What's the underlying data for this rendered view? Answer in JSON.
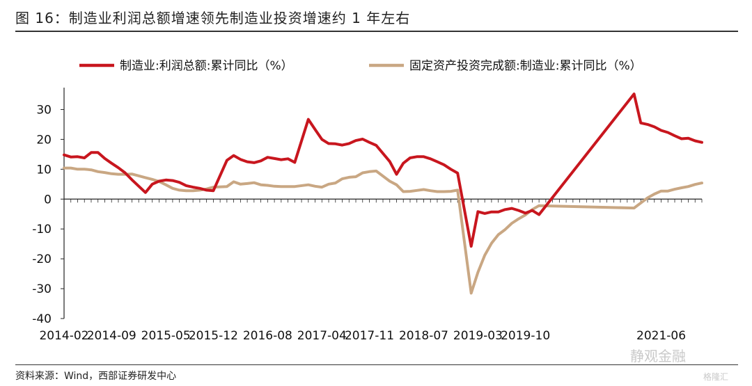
{
  "figure": {
    "title": "图 16：制造业利润总额增速领先制造业投资增速约 1 年左右",
    "source": "资料来源：Wind，西部证券研发中心",
    "watermark": "静观金融",
    "watermark_sub": "格隆汇"
  },
  "colors": {
    "series_profit": "#c8161e",
    "series_investment": "#c9a783",
    "axis": "#222222"
  },
  "chart_data": {
    "type": "line",
    "ylim": [
      -40,
      35
    ],
    "yticks": [
      -40,
      -30,
      -20,
      -10,
      0,
      10,
      20,
      30
    ],
    "x_range": [
      "2014-02",
      "2021-12"
    ],
    "x_tick_labels": [
      "2014-02",
      "2014-09",
      "2015-05",
      "2015-12",
      "2016-08",
      "2017-04",
      "2017-11",
      "2018-07",
      "2019-03",
      "2019-10",
      "2021-06"
    ],
    "legend_position": "top",
    "series": [
      {
        "name": "制造业:利润总额:累计同比（%）",
        "points": [
          [
            "2014-02",
            14.8
          ],
          [
            "2014-03",
            14.1
          ],
          [
            "2014-04",
            14.2
          ],
          [
            "2014-05",
            13.8
          ],
          [
            "2014-06",
            15.6
          ],
          [
            "2014-07",
            15.6
          ],
          [
            "2014-08",
            13.6
          ],
          [
            "2014-09",
            12.0
          ],
          [
            "2014-10",
            10.5
          ],
          [
            "2014-11",
            8.8
          ],
          [
            "2014-12",
            6.5
          ],
          [
            "2015-02",
            2.2
          ],
          [
            "2015-03",
            5.0
          ],
          [
            "2015-04",
            6.0
          ],
          [
            "2015-05",
            6.4
          ],
          [
            "2015-06",
            6.2
          ],
          [
            "2015-07",
            5.6
          ],
          [
            "2015-08",
            4.5
          ],
          [
            "2015-09",
            4.0
          ],
          [
            "2015-10",
            3.6
          ],
          [
            "2015-11",
            3.0
          ],
          [
            "2015-12",
            2.8
          ],
          [
            "2016-02",
            13.0
          ],
          [
            "2016-03",
            14.6
          ],
          [
            "2016-04",
            13.3
          ],
          [
            "2016-05",
            12.5
          ],
          [
            "2016-06",
            12.2
          ],
          [
            "2016-07",
            12.8
          ],
          [
            "2016-08",
            14.0
          ],
          [
            "2016-09",
            13.6
          ],
          [
            "2016-10",
            13.2
          ],
          [
            "2016-11",
            13.5
          ],
          [
            "2016-12",
            12.3
          ],
          [
            "2017-02",
            26.7
          ],
          [
            "2017-03",
            23.3
          ],
          [
            "2017-04",
            20.0
          ],
          [
            "2017-05",
            18.6
          ],
          [
            "2017-06",
            18.5
          ],
          [
            "2017-07",
            18.1
          ],
          [
            "2017-08",
            18.6
          ],
          [
            "2017-09",
            19.6
          ],
          [
            "2017-10",
            20.1
          ],
          [
            "2017-11",
            19.0
          ],
          [
            "2017-12",
            18.0
          ],
          [
            "2018-02",
            12.6
          ],
          [
            "2018-03",
            8.3
          ],
          [
            "2018-04",
            12.0
          ],
          [
            "2018-05",
            13.8
          ],
          [
            "2018-06",
            14.2
          ],
          [
            "2018-07",
            14.2
          ],
          [
            "2018-08",
            13.5
          ],
          [
            "2018-09",
            12.5
          ],
          [
            "2018-10",
            11.5
          ],
          [
            "2018-11",
            10.0
          ],
          [
            "2018-12",
            8.7
          ],
          [
            "2019-02",
            -15.8
          ],
          [
            "2019-03",
            -4.2
          ],
          [
            "2019-04",
            -4.8
          ],
          [
            "2019-05",
            -4.3
          ],
          [
            "2019-06",
            -4.3
          ],
          [
            "2019-07",
            -3.5
          ],
          [
            "2019-08",
            -3.1
          ],
          [
            "2019-09",
            -3.8
          ],
          [
            "2019-10",
            -4.7
          ],
          [
            "2019-11",
            -3.8
          ],
          [
            "2019-12",
            -5.2
          ],
          [
            "2021-02",
            35.2
          ],
          [
            "2021-03",
            25.5
          ],
          [
            "2021-04",
            25.0
          ],
          [
            "2021-05",
            24.2
          ],
          [
            "2021-06",
            23.0
          ],
          [
            "2021-07",
            22.3
          ],
          [
            "2021-08",
            21.2
          ],
          [
            "2021-09",
            20.2
          ],
          [
            "2021-10",
            20.4
          ],
          [
            "2021-11",
            19.5
          ],
          [
            "2021-12",
            19.0
          ]
        ]
      },
      {
        "name": "固定资产投资完成额:制造业:累计同比（%）",
        "points": [
          [
            "2014-02",
            10.4
          ],
          [
            "2014-03",
            10.4
          ],
          [
            "2014-04",
            10.0
          ],
          [
            "2014-05",
            10.0
          ],
          [
            "2014-06",
            9.8
          ],
          [
            "2014-07",
            9.2
          ],
          [
            "2014-08",
            8.9
          ],
          [
            "2014-09",
            8.5
          ],
          [
            "2014-10",
            8.3
          ],
          [
            "2014-11",
            8.3
          ],
          [
            "2014-12",
            8.4
          ],
          [
            "2015-02",
            7.2
          ],
          [
            "2015-03",
            6.6
          ],
          [
            "2015-04",
            5.9
          ],
          [
            "2015-05",
            4.8
          ],
          [
            "2015-06",
            3.6
          ],
          [
            "2015-07",
            3.0
          ],
          [
            "2015-08",
            2.8
          ],
          [
            "2015-09",
            2.8
          ],
          [
            "2015-10",
            3.0
          ],
          [
            "2015-11",
            3.4
          ],
          [
            "2015-12",
            4.0
          ],
          [
            "2016-02",
            4.2
          ],
          [
            "2016-03",
            5.8
          ],
          [
            "2016-04",
            5.0
          ],
          [
            "2016-05",
            5.2
          ],
          [
            "2016-06",
            5.5
          ],
          [
            "2016-07",
            4.8
          ],
          [
            "2016-08",
            4.6
          ],
          [
            "2016-09",
            4.3
          ],
          [
            "2016-10",
            4.2
          ],
          [
            "2016-11",
            4.2
          ],
          [
            "2016-12",
            4.2
          ],
          [
            "2017-02",
            4.8
          ],
          [
            "2017-03",
            4.3
          ],
          [
            "2017-04",
            4.0
          ],
          [
            "2017-05",
            5.0
          ],
          [
            "2017-06",
            5.4
          ],
          [
            "2017-07",
            6.8
          ],
          [
            "2017-08",
            7.3
          ],
          [
            "2017-09",
            7.5
          ],
          [
            "2017-10",
            8.8
          ],
          [
            "2017-11",
            9.2
          ],
          [
            "2017-12",
            9.4
          ],
          [
            "2018-02",
            6.0
          ],
          [
            "2018-03",
            4.8
          ],
          [
            "2018-04",
            2.5
          ],
          [
            "2018-05",
            2.6
          ],
          [
            "2018-06",
            2.9
          ],
          [
            "2018-07",
            3.2
          ],
          [
            "2018-08",
            2.8
          ],
          [
            "2018-09",
            2.5
          ],
          [
            "2018-10",
            2.5
          ],
          [
            "2018-11",
            2.6
          ],
          [
            "2018-12",
            3.0
          ],
          [
            "2019-02",
            -31.5
          ],
          [
            "2019-03",
            -24.5
          ],
          [
            "2019-04",
            -18.8
          ],
          [
            "2019-05",
            -14.8
          ],
          [
            "2019-06",
            -11.9
          ],
          [
            "2019-07",
            -10.2
          ],
          [
            "2019-08",
            -8.1
          ],
          [
            "2019-09",
            -6.6
          ],
          [
            "2019-10",
            -5.3
          ],
          [
            "2019-11",
            -3.5
          ],
          [
            "2019-12",
            -2.2
          ],
          [
            "2021-02",
            -3.0
          ],
          [
            "2021-03",
            -1.3
          ],
          [
            "2021-04",
            0.4
          ],
          [
            "2021-05",
            1.7
          ],
          [
            "2021-06",
            2.7
          ],
          [
            "2021-07",
            2.7
          ],
          [
            "2021-08",
            3.3
          ],
          [
            "2021-09",
            3.8
          ],
          [
            "2021-10",
            4.2
          ],
          [
            "2021-11",
            4.9
          ],
          [
            "2021-12",
            5.4
          ]
        ]
      }
    ]
  }
}
